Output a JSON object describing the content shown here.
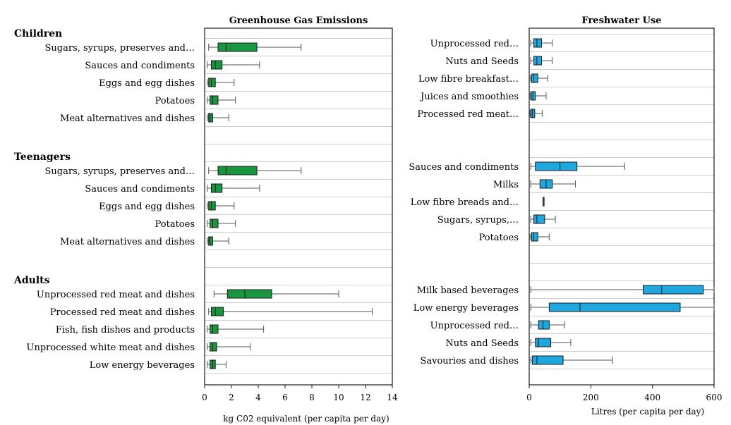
{
  "chart_data": [
    {
      "type": "boxplot",
      "title": "Greenhouse Gas Emissions",
      "xlabel": "kg C02 equivalent (per capita per day)",
      "xlim": [
        0,
        14
      ],
      "xticks": [
        0,
        2,
        4,
        6,
        8,
        10,
        12,
        14
      ],
      "orientation": "horizontal",
      "box_color": "#1a9641",
      "groups": [
        {
          "name": "Children",
          "items": [
            {
              "label": "Sugars, syrups, preserves and…",
              "min": 0.3,
              "q1": 1.0,
              "median": 1.6,
              "q3": 3.9,
              "max": 7.2
            },
            {
              "label": "Sauces and condiments",
              "min": 0.2,
              "q1": 0.5,
              "median": 0.8,
              "q3": 1.3,
              "max": 4.1
            },
            {
              "label": "Eggs and egg dishes",
              "min": 0.2,
              "q1": 0.3,
              "median": 0.5,
              "q3": 0.8,
              "max": 2.2
            },
            {
              "label": "Potatoes",
              "min": 0.2,
              "q1": 0.4,
              "median": 0.6,
              "q3": 1.0,
              "max": 2.3
            },
            {
              "label": "Meat alternatives and dishes",
              "min": 0.2,
              "q1": 0.3,
              "median": 0.4,
              "q3": 0.6,
              "max": 1.8
            }
          ]
        },
        {
          "name": "Teenagers",
          "items": [
            {
              "label": "Sugars, syrups, preserves and…",
              "min": 0.3,
              "q1": 1.0,
              "median": 1.6,
              "q3": 3.9,
              "max": 7.2
            },
            {
              "label": "Sauces and condiments",
              "min": 0.2,
              "q1": 0.5,
              "median": 0.8,
              "q3": 1.3,
              "max": 4.1
            },
            {
              "label": "Eggs and egg dishes",
              "min": 0.2,
              "q1": 0.3,
              "median": 0.5,
              "q3": 0.8,
              "max": 2.2
            },
            {
              "label": "Potatoes",
              "min": 0.2,
              "q1": 0.4,
              "median": 0.6,
              "q3": 1.0,
              "max": 2.3
            },
            {
              "label": "Meat alternatives and dishes",
              "min": 0.2,
              "q1": 0.3,
              "median": 0.4,
              "q3": 0.6,
              "max": 1.8
            }
          ]
        },
        {
          "name": "Adults",
          "items": [
            {
              "label": "Unprocessed red meat and dishes",
              "min": 0.7,
              "q1": 1.7,
              "median": 3.0,
              "q3": 5.0,
              "max": 10.0
            },
            {
              "label": "Processed red meat and dishes",
              "min": 0.3,
              "q1": 0.5,
              "median": 0.8,
              "q3": 1.4,
              "max": 12.5
            },
            {
              "label": "Fish, fish dishes and products",
              "min": 0.2,
              "q1": 0.4,
              "median": 0.6,
              "q3": 1.0,
              "max": 4.4
            },
            {
              "label": "Unprocessed white meat and dishes",
              "min": 0.2,
              "q1": 0.4,
              "median": 0.6,
              "q3": 0.9,
              "max": 3.4
            },
            {
              "label": "Low energy beverages",
              "min": 0.2,
              "q1": 0.4,
              "median": 0.6,
              "q3": 0.8,
              "max": 1.6
            }
          ]
        }
      ]
    },
    {
      "type": "boxplot",
      "title": "Freshwater Use",
      "xlabel": "Litres (per capita per day)",
      "xlim": [
        0,
        600
      ],
      "xticks": [
        0,
        200,
        400,
        600
      ],
      "orientation": "horizontal",
      "box_color": "#1fa8e0",
      "groups": [
        {
          "name": "",
          "items": [
            {
              "label": "Unprocessed red…",
              "min": 5,
              "q1": 15,
              "median": 25,
              "q3": 40,
              "max": 75
            },
            {
              "label": "Nuts and Seeds",
              "min": 5,
              "q1": 15,
              "median": 25,
              "q3": 40,
              "max": 75
            },
            {
              "label": "Low fibre breakfast…",
              "min": 3,
              "q1": 8,
              "median": 15,
              "q3": 28,
              "max": 60
            },
            {
              "label": "Juices and smoothies",
              "min": 3,
              "q1": 6,
              "median": 12,
              "q3": 20,
              "max": 55
            },
            {
              "label": "Processed red meat…",
              "min": 2,
              "q1": 5,
              "median": 10,
              "q3": 18,
              "max": 42
            }
          ]
        },
        {
          "name": "",
          "items": [
            {
              "label": "Sauces and condiments",
              "min": 5,
              "q1": 20,
              "median": 100,
              "q3": 155,
              "max": 310
            },
            {
              "label": "Milks",
              "min": 5,
              "q1": 35,
              "median": 55,
              "q3": 75,
              "max": 150
            },
            {
              "label": "Low fibre breads and…",
              "min": 45,
              "q1": 45,
              "median": 45,
              "q3": 45,
              "max": 45
            },
            {
              "label": "Sugars, syrups,…",
              "min": 5,
              "q1": 15,
              "median": 25,
              "q3": 50,
              "max": 85
            },
            {
              "label": "Potatoes",
              "min": 3,
              "q1": 8,
              "median": 15,
              "q3": 28,
              "max": 65
            }
          ]
        },
        {
          "name": "",
          "items": [
            {
              "label": "Milk based beverages",
              "min": 5,
              "q1": 370,
              "median": 430,
              "q3": 565,
              "max": 600
            },
            {
              "label": "Low energy beverages",
              "min": 5,
              "q1": 65,
              "median": 165,
              "q3": 490,
              "max": 600
            },
            {
              "label": "Unprocessed red…",
              "min": 5,
              "q1": 30,
              "median": 45,
              "q3": 65,
              "max": 115
            },
            {
              "label": "Nuts and Seeds",
              "min": 5,
              "q1": 20,
              "median": 30,
              "q3": 70,
              "max": 135
            },
            {
              "label": "Savouries and dishes",
              "min": 5,
              "q1": 10,
              "median": 25,
              "q3": 110,
              "max": 270
            }
          ]
        }
      ]
    }
  ]
}
